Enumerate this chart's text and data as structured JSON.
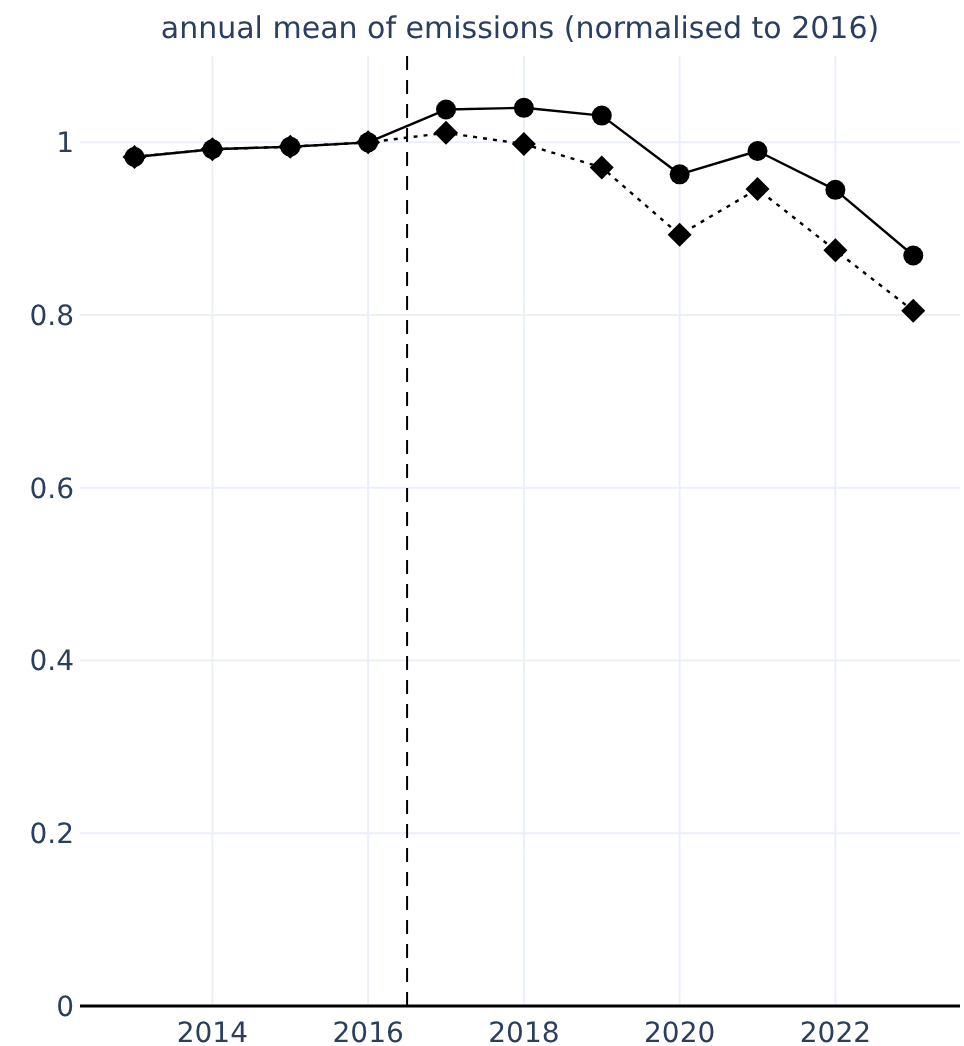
{
  "chart_data": {
    "type": "line",
    "title": "annual mean of emissions (normalised to 2016)",
    "x": [
      2013,
      2014,
      2015,
      2016,
      2017,
      2018,
      2019,
      2020,
      2021,
      2022,
      2023
    ],
    "series": [
      {
        "color": "#000000",
        "marker": "circle",
        "line_style": "solid",
        "values": [
          0.983,
          0.992,
          0.995,
          1.0,
          1.038,
          1.04,
          1.031,
          0.963,
          0.99,
          0.945,
          0.869
        ]
      },
      {
        "color": "#000000",
        "marker": "diamond",
        "line_style": "dotted",
        "values": [
          0.983,
          0.992,
          0.995,
          1.0,
          1.011,
          0.998,
          0.971,
          0.893,
          0.946,
          0.875,
          0.805
        ]
      }
    ],
    "xlim": [
      2012.3,
      2023.6
    ],
    "xticks": [
      2014,
      2016,
      2018,
      2020,
      2022
    ],
    "ylim": [
      0,
      1.1
    ],
    "yticks": [
      0,
      0.2,
      0.4,
      0.6,
      0.8,
      1
    ],
    "grid": true,
    "ref_lines": [
      {
        "axis": "x",
        "value": 2016.5,
        "line_style": "dashed",
        "color": "#000000"
      }
    ]
  }
}
